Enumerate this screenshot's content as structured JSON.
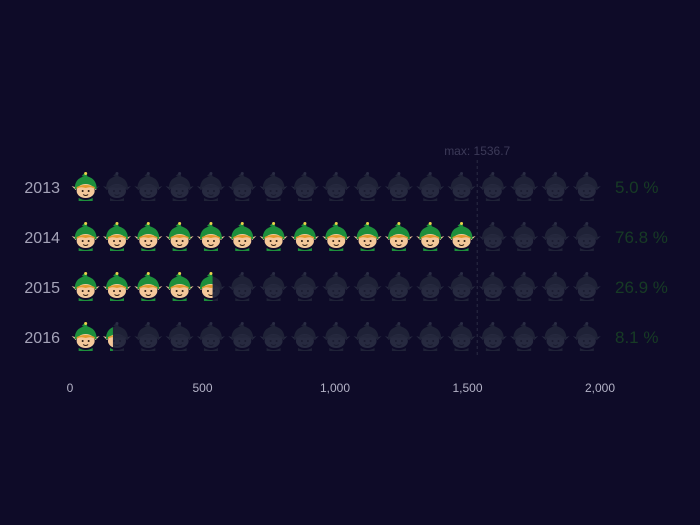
{
  "chart_data": {
    "type": "bar",
    "style": "pictorial",
    "icon": "elf-icon",
    "categories": [
      "2013",
      "2014",
      "2015",
      "2016"
    ],
    "values": [
      100,
      1536.7,
      538,
      162
    ],
    "percent_labels": [
      "5.0 %",
      "76.8 %",
      "26.9 %",
      "8.1 %"
    ],
    "max_label": "max: 1536.7",
    "xlim": [
      0,
      2000
    ],
    "x_ticks": [
      0,
      500,
      1000,
      1500,
      2000
    ],
    "x_tick_labels": [
      "0",
      "500",
      "1,000",
      "1,500",
      "2,000"
    ],
    "units_per_icon": 118.2,
    "colors": {
      "background": "#0e0b28",
      "hat": "#1d8f3c",
      "skin": "#f4c89a",
      "hair": "#e39a2f",
      "inactive": "#1f2237",
      "percent_text": "#173b25"
    }
  }
}
